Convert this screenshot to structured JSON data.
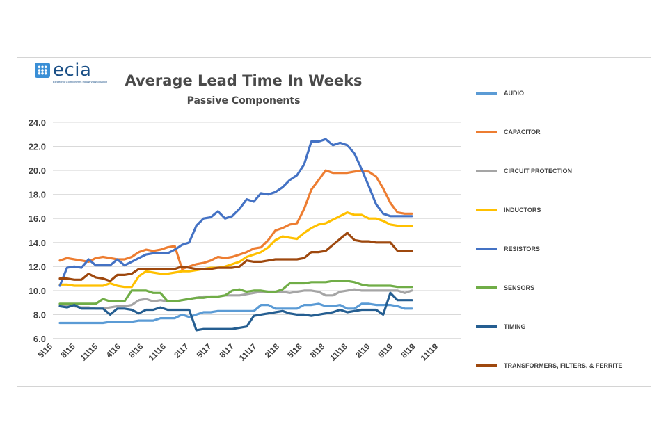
{
  "logo": {
    "wordmark": "ecia",
    "tagline": "Electronic Components Industry Association"
  },
  "chart_data": {
    "type": "line",
    "title": "Average Lead Time In Weeks",
    "subtitle": "Passive Components",
    "xlabel": "",
    "ylabel": "",
    "ylim": [
      6.0,
      24.0
    ],
    "y_ticks": [
      "6.0",
      "8.0",
      "10.0",
      "12.0",
      "14.0",
      "16.0",
      "18.0",
      "20.0",
      "22.0",
      "24.0"
    ],
    "x_ticks": [
      "5\\15",
      "8\\15",
      "11\\15",
      "4\\16",
      "8\\16",
      "11\\16",
      "2\\17",
      "5\\17",
      "8\\17",
      "11\\17",
      "2\\18",
      "5\\18",
      "8\\18",
      "11\\18",
      "2\\19",
      "5\\19",
      "8\\19",
      "11\\19"
    ],
    "grid": true,
    "legend_position": "right",
    "series": [
      {
        "name": "AUDIO",
        "color": "#5b9bd5",
        "values": [
          7.3,
          7.3,
          7.3,
          7.3,
          7.3,
          7.3,
          7.3,
          7.4,
          7.4,
          7.4,
          7.4,
          7.5,
          7.5,
          7.5,
          7.7,
          7.7,
          7.7,
          8.0,
          7.8,
          8.0,
          8.2,
          8.2,
          8.3,
          8.3,
          8.3,
          8.3,
          8.3,
          8.3,
          8.8,
          8.8,
          8.5,
          8.5,
          8.5,
          8.5,
          8.8,
          8.8,
          8.9,
          8.7,
          8.7,
          8.8,
          8.5,
          8.5,
          8.9,
          8.9,
          8.8,
          8.8,
          8.8,
          8.7,
          8.5,
          8.5
        ]
      },
      {
        "name": "CAPACITOR",
        "color": "#ed7d31",
        "values": [
          12.5,
          12.7,
          12.6,
          12.5,
          12.4,
          12.7,
          12.8,
          12.7,
          12.6,
          12.6,
          12.8,
          13.2,
          13.4,
          13.3,
          13.4,
          13.6,
          13.7,
          11.8,
          12.0,
          12.2,
          12.3,
          12.5,
          12.8,
          12.7,
          12.8,
          13.0,
          13.2,
          13.5,
          13.6,
          14.2,
          15.0,
          15.2,
          15.5,
          15.6,
          16.8,
          18.4,
          19.2,
          20.0,
          19.8,
          19.8,
          19.8,
          19.9,
          20.0,
          19.9,
          19.5,
          18.5,
          17.3,
          16.5,
          16.4,
          16.4
        ]
      },
      {
        "name": "CIRCUIT PROTECTION",
        "color": "#a5a5a5",
        "values": [
          8.8,
          8.7,
          8.7,
          8.6,
          8.6,
          8.5,
          8.5,
          8.6,
          8.7,
          8.7,
          8.8,
          9.2,
          9.3,
          9.1,
          9.2,
          9.1,
          9.1,
          9.2,
          9.3,
          9.4,
          9.5,
          9.5,
          9.5,
          9.6,
          9.6,
          9.6,
          9.7,
          9.8,
          9.9,
          9.9,
          9.9,
          9.9,
          9.8,
          9.9,
          10.0,
          10.0,
          9.9,
          9.6,
          9.6,
          9.9,
          10.0,
          10.1,
          10.0,
          10.0,
          10.0,
          10.0,
          10.0,
          10.0,
          9.8,
          10.0
        ]
      },
      {
        "name": "INDUCTORS",
        "color": "#ffc000",
        "values": [
          10.5,
          10.5,
          10.4,
          10.4,
          10.4,
          10.4,
          10.4,
          10.6,
          10.4,
          10.3,
          10.3,
          11.2,
          11.6,
          11.5,
          11.4,
          11.4,
          11.5,
          11.6,
          11.6,
          11.7,
          11.8,
          11.9,
          11.9,
          12.0,
          12.2,
          12.4,
          12.8,
          13.0,
          13.2,
          13.6,
          14.2,
          14.5,
          14.4,
          14.3,
          14.8,
          15.2,
          15.5,
          15.6,
          15.9,
          16.2,
          16.5,
          16.3,
          16.3,
          16.0,
          16.0,
          15.8,
          15.5,
          15.4,
          15.4,
          15.4
        ]
      },
      {
        "name": "RESISTORS",
        "color": "#4472c4",
        "values": [
          10.4,
          11.9,
          12.0,
          11.9,
          12.6,
          12.1,
          12.1,
          12.1,
          12.6,
          12.1,
          12.4,
          12.7,
          13.0,
          13.1,
          13.1,
          13.1,
          13.4,
          13.8,
          14.0,
          15.4,
          16.0,
          16.1,
          16.6,
          16.0,
          16.2,
          16.8,
          17.6,
          17.4,
          18.1,
          18.0,
          18.2,
          18.6,
          19.2,
          19.6,
          20.5,
          22.4,
          22.4,
          22.6,
          22.1,
          22.3,
          22.1,
          21.4,
          20.1,
          18.7,
          17.2,
          16.4,
          16.2,
          16.2,
          16.2,
          16.2
        ]
      },
      {
        "name": "SENSORS",
        "color": "#70ad47",
        "values": [
          8.9,
          8.9,
          8.9,
          8.9,
          8.9,
          8.9,
          9.3,
          9.1,
          9.1,
          9.1,
          10.0,
          10.0,
          10.0,
          9.8,
          9.8,
          9.1,
          9.1,
          9.2,
          9.3,
          9.4,
          9.4,
          9.5,
          9.5,
          9.6,
          10.0,
          10.1,
          9.9,
          10.0,
          10.0,
          9.9,
          9.9,
          10.1,
          10.6,
          10.6,
          10.6,
          10.7,
          10.7,
          10.7,
          10.8,
          10.8,
          10.8,
          10.7,
          10.5,
          10.4,
          10.4,
          10.4,
          10.4,
          10.3,
          10.3,
          10.3
        ]
      },
      {
        "name": "TIMING",
        "color": "#255e91",
        "values": [
          8.7,
          8.6,
          8.8,
          8.5,
          8.5,
          8.5,
          8.5,
          8.0,
          8.5,
          8.5,
          8.4,
          8.1,
          8.4,
          8.4,
          8.6,
          8.4,
          8.4,
          8.4,
          8.4,
          6.7,
          6.8,
          6.8,
          6.8,
          6.8,
          6.8,
          6.9,
          7.0,
          7.9,
          8.0,
          8.1,
          8.2,
          8.3,
          8.1,
          8.0,
          8.0,
          7.9,
          8.0,
          8.1,
          8.2,
          8.4,
          8.2,
          8.3,
          8.4,
          8.4,
          8.4,
          8.0,
          9.8,
          9.2,
          9.2,
          9.2
        ]
      },
      {
        "name": "TRANSFORMERS, FILTERS, & FERRITE",
        "color": "#9e480e",
        "values": [
          11.0,
          11.0,
          10.9,
          10.9,
          11.4,
          11.1,
          11.0,
          10.8,
          11.3,
          11.3,
          11.4,
          11.8,
          11.8,
          11.8,
          11.8,
          11.8,
          11.8,
          12.0,
          11.9,
          11.8,
          11.8,
          11.8,
          11.9,
          11.9,
          11.9,
          12.0,
          12.5,
          12.4,
          12.4,
          12.5,
          12.6,
          12.6,
          12.6,
          12.6,
          12.7,
          13.2,
          13.2,
          13.3,
          13.8,
          14.3,
          14.8,
          14.2,
          14.1,
          14.1,
          14.0,
          14.0,
          14.0,
          13.3,
          13.3,
          13.3
        ]
      }
    ]
  }
}
